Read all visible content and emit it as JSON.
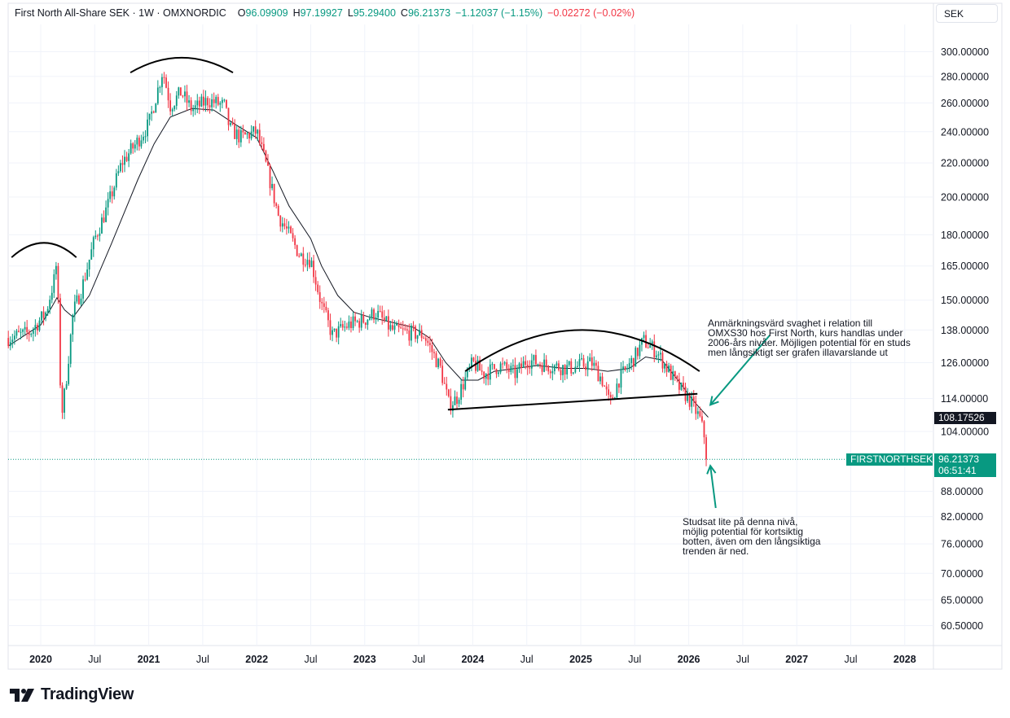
{
  "header": {
    "title": "First North All-Share SEK · 1W · OMXNORDIC",
    "open_label": "O",
    "open_value": "96.09909",
    "high_label": "H",
    "high_value": "97.19927",
    "low_label": "L",
    "low_value": "95.29400",
    "close_label": "C",
    "close_value": "96.21373",
    "change": "−1.12037 (−1.15%)",
    "ext_change": "−0.02272 (−0.02%)"
  },
  "currency": "SEK",
  "branding": "TradingView",
  "colors": {
    "up": "#089981",
    "down": "#f23645",
    "badge_dark": "#131722",
    "grid": "#f0f3fa",
    "ma": "#131722"
  },
  "price_badges": {
    "ma_value": "108.17526",
    "symbol": "FIRSTNORTHSEK",
    "last_price": "96.21373",
    "countdown": "06:51:41"
  },
  "annotations": {
    "note_top": [
      "Anmärkningsvärd svaghet i relation till",
      "OMXS30 hos First North, kurs handlas under",
      "2006-års nivåer. Möjligen potential för en studs",
      "men långsiktigt ser grafen illavarslande ut"
    ],
    "note_bottom": [
      "Studsat lite på denna nivå,",
      "möjlig potential för kortsiktig",
      "botten, även om den långsiktiga",
      "trenden är ned."
    ]
  },
  "chart_data": {
    "type": "candlestick",
    "scale": "log",
    "y_ticks": [
      300,
      280,
      260,
      240,
      220,
      200,
      180,
      165,
      150,
      138,
      126,
      114,
      104,
      88,
      82,
      76,
      70,
      65,
      60.5
    ],
    "y_tick_labels": [
      "300.00000",
      "280.00000",
      "260.00000",
      "240.00000",
      "220.00000",
      "200.00000",
      "180.00000",
      "165.00000",
      "150.00000",
      "138.00000",
      "126.00000",
      "114.00000",
      "104.00000",
      "88.00000",
      "82.00000",
      "76.00000",
      "70.00000",
      "65.00000",
      "60.50000"
    ],
    "x_ticks": [
      {
        "label": "2020",
        "t": 2020.0,
        "bold": true
      },
      {
        "label": "Jul",
        "t": 2020.5,
        "bold": false
      },
      {
        "label": "2021",
        "t": 2021.0,
        "bold": true
      },
      {
        "label": "Jul",
        "t": 2021.5,
        "bold": false
      },
      {
        "label": "2022",
        "t": 2022.0,
        "bold": true
      },
      {
        "label": "Jul",
        "t": 2022.5,
        "bold": false
      },
      {
        "label": "2023",
        "t": 2023.0,
        "bold": true
      },
      {
        "label": "Jul",
        "t": 2023.5,
        "bold": false
      },
      {
        "label": "2024",
        "t": 2024.0,
        "bold": true
      },
      {
        "label": "Jul",
        "t": 2024.5,
        "bold": false
      },
      {
        "label": "2025",
        "t": 2025.0,
        "bold": true
      },
      {
        "label": "Jul",
        "t": 2025.5,
        "bold": false
      },
      {
        "label": "2026",
        "t": 2026.0,
        "bold": true
      },
      {
        "label": "Jul",
        "t": 2026.5,
        "bold": false
      },
      {
        "label": "2027",
        "t": 2027.0,
        "bold": true
      },
      {
        "label": "Jul",
        "t": 2027.5,
        "bold": false
      },
      {
        "label": "2028",
        "t": 2028.0,
        "bold": true
      }
    ],
    "close_path": [
      [
        2019.7,
        135
      ],
      [
        2019.9,
        137
      ],
      [
        2020.05,
        145
      ],
      [
        2020.13,
        160
      ],
      [
        2020.15,
        168
      ],
      [
        2020.19,
        108
      ],
      [
        2020.23,
        118
      ],
      [
        2020.3,
        145
      ],
      [
        2020.38,
        155
      ],
      [
        2020.5,
        178
      ],
      [
        2020.62,
        195
      ],
      [
        2020.75,
        220
      ],
      [
        2020.88,
        232
      ],
      [
        2021.0,
        245
      ],
      [
        2021.1,
        275
      ],
      [
        2021.13,
        285
      ],
      [
        2021.2,
        258
      ],
      [
        2021.3,
        268
      ],
      [
        2021.4,
        255
      ],
      [
        2021.55,
        262
      ],
      [
        2021.7,
        258
      ],
      [
        2021.75,
        242
      ],
      [
        2021.85,
        236
      ],
      [
        2022.0,
        240
      ],
      [
        2022.1,
        215
      ],
      [
        2022.2,
        190
      ],
      [
        2022.3,
        180
      ],
      [
        2022.4,
        170
      ],
      [
        2022.5,
        168
      ],
      [
        2022.6,
        148
      ],
      [
        2022.7,
        136
      ],
      [
        2022.85,
        140
      ],
      [
        2023.0,
        142
      ],
      [
        2023.1,
        145
      ],
      [
        2023.25,
        138
      ],
      [
        2023.4,
        137
      ],
      [
        2023.55,
        136
      ],
      [
        2023.7,
        124
      ],
      [
        2023.78,
        112
      ],
      [
        2023.85,
        114
      ],
      [
        2024.0,
        126
      ],
      [
        2024.1,
        122
      ],
      [
        2024.25,
        125
      ],
      [
        2024.4,
        122
      ],
      [
        2024.5,
        127
      ],
      [
        2024.7,
        125
      ],
      [
        2024.9,
        124
      ],
      [
        2025.1,
        126
      ],
      [
        2025.2,
        120
      ],
      [
        2025.27,
        112
      ],
      [
        2025.35,
        120
      ],
      [
        2025.5,
        128
      ],
      [
        2025.58,
        134
      ],
      [
        2025.7,
        130
      ],
      [
        2025.8,
        124
      ],
      [
        2025.9,
        118
      ],
      [
        2026.0,
        114
      ],
      [
        2026.1,
        108
      ],
      [
        2026.15,
        102
      ],
      [
        2026.18,
        96.21
      ]
    ],
    "moving_average": [
      [
        2019.7,
        132
      ],
      [
        2020.0,
        140
      ],
      [
        2020.1,
        147
      ],
      [
        2020.15,
        151
      ],
      [
        2020.22,
        146
      ],
      [
        2020.3,
        143
      ],
      [
        2020.45,
        152
      ],
      [
        2020.65,
        175
      ],
      [
        2020.9,
        210
      ],
      [
        2021.05,
        232
      ],
      [
        2021.2,
        250
      ],
      [
        2021.4,
        256
      ],
      [
        2021.6,
        255
      ],
      [
        2021.8,
        245
      ],
      [
        2022.0,
        236
      ],
      [
        2022.15,
        215
      ],
      [
        2022.3,
        195
      ],
      [
        2022.5,
        178
      ],
      [
        2022.6,
        165
      ],
      [
        2022.75,
        152
      ],
      [
        2022.9,
        145
      ],
      [
        2023.05,
        143
      ],
      [
        2023.25,
        141
      ],
      [
        2023.45,
        139
      ],
      [
        2023.6,
        135
      ],
      [
        2023.75,
        126
      ],
      [
        2023.9,
        120
      ],
      [
        2024.05,
        120
      ],
      [
        2024.2,
        123
      ],
      [
        2024.4,
        124
      ],
      [
        2024.6,
        125
      ],
      [
        2024.85,
        124
      ],
      [
        2025.05,
        124
      ],
      [
        2025.25,
        123
      ],
      [
        2025.45,
        124
      ],
      [
        2025.6,
        128
      ],
      [
        2025.75,
        127
      ],
      [
        2025.9,
        120
      ],
      [
        2026.05,
        113
      ],
      [
        2026.18,
        108.18
      ]
    ],
    "drawings": {
      "arcs": [
        {
          "name": "arc-2020",
          "t1": 2019.73,
          "t2": 2020.33,
          "peak": 176,
          "base": 169
        },
        {
          "name": "arc-2021",
          "t1": 2020.83,
          "t2": 2021.78,
          "peak": 295,
          "base": 283
        },
        {
          "name": "arc-2024-2025",
          "t1": 2023.93,
          "t2": 2026.1,
          "peak": 138,
          "base": 123
        }
      ],
      "support_line": {
        "t1": 2023.77,
        "v1": 110.5,
        "t2": 2026.08,
        "v2": 115.5
      },
      "arrows": [
        {
          "name": "arrow-note-top",
          "t1": 2026.75,
          "v1": 136,
          "t2": 2026.2,
          "v2": 112
        },
        {
          "name": "arrow-note-bottom",
          "t1": 2026.25,
          "v1": 84,
          "t2": 2026.2,
          "v2": 94.5
        }
      ]
    },
    "last_value": 96.21373,
    "ma_value": 108.17526
  }
}
